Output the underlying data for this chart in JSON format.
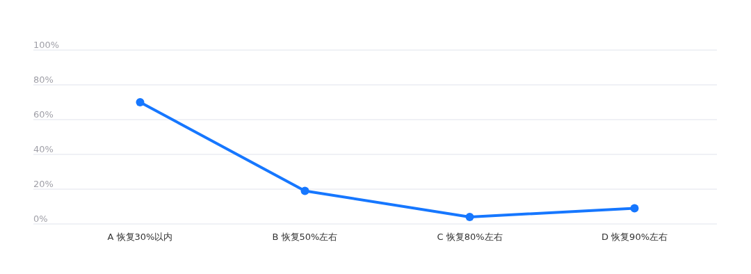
{
  "chart_data": {
    "type": "line",
    "categories": [
      "A 恢复30%以内",
      "B 恢复50%左右",
      "C 恢复80%左右",
      "D 恢复90%左右"
    ],
    "series": [
      {
        "color": "#1677ff",
        "values": [
          70,
          19,
          4,
          9
        ]
      }
    ],
    "ylim": [
      0,
      100
    ],
    "yticks": [
      {
        "value": 0,
        "label": "0%"
      },
      {
        "value": 20,
        "label": "20%"
      },
      {
        "value": 40,
        "label": "40%"
      },
      {
        "value": 60,
        "label": "60%"
      },
      {
        "value": 80,
        "label": "80%"
      },
      {
        "value": 100,
        "label": "100%"
      }
    ],
    "grid": "y",
    "marker": "circle",
    "line_style": "solid"
  }
}
